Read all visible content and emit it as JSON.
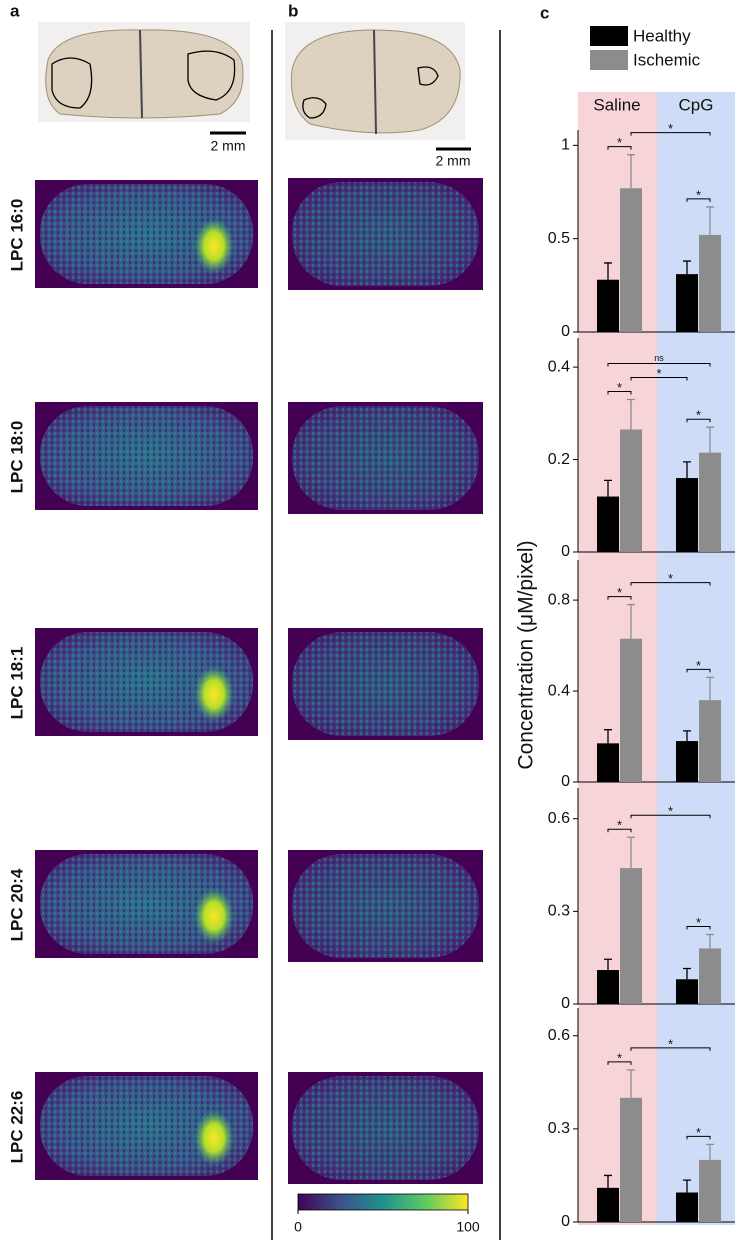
{
  "panel_labels": [
    "a",
    "b",
    "c"
  ],
  "scale_bars": [
    "2 mm",
    "2 mm"
  ],
  "row_labels": [
    "LPC 16:0",
    "LPC 18:0",
    "LPC 18:1",
    "LPC 20:4",
    "LPC 22:6"
  ],
  "colorbar": {
    "lim": [
      0,
      100
    ],
    "ticks": [
      0,
      100
    ]
  },
  "group_labels": [
    "Saline",
    "CpG"
  ],
  "ylabel": "Concentration (μM/pixel)",
  "chart_data": [
    {
      "type": "bar",
      "series": [
        {
          "name": "Healthy",
          "color": "#000000",
          "values": [
            0.28,
            0.31
          ],
          "errors": [
            0.09,
            0.07
          ]
        },
        {
          "name": "Ischemic",
          "color": "#8c8c8c",
          "values": [
            0.77,
            0.52
          ],
          "errors": [
            0.18,
            0.15
          ]
        }
      ],
      "ylim": [
        0,
        1.05
      ],
      "yticks": [
        0,
        0.5,
        1
      ],
      "annotations": [
        "*",
        "*",
        "*"
      ]
    },
    {
      "type": "bar",
      "series": [
        {
          "color": "#000000",
          "values": [
            0.12,
            0.16
          ],
          "errors": [
            0.035,
            0.035
          ]
        },
        {
          "color": "#8c8c8c",
          "values": [
            0.265,
            0.215
          ],
          "errors": [
            0.065,
            0.055
          ]
        }
      ],
      "ylim": [
        0,
        0.45
      ],
      "yticks": [
        0,
        0.2,
        0.4
      ],
      "annotations": [
        "*",
        "*",
        "ns",
        "*"
      ]
    },
    {
      "type": "bar",
      "series": [
        {
          "color": "#000000",
          "values": [
            0.17,
            0.18
          ],
          "errors": [
            0.06,
            0.045
          ]
        },
        {
          "color": "#8c8c8c",
          "values": [
            0.63,
            0.36
          ],
          "errors": [
            0.15,
            0.1
          ]
        }
      ],
      "ylim": [
        0,
        0.95
      ],
      "yticks": [
        0,
        0.4,
        0.8
      ],
      "annotations": [
        "*",
        "*",
        "*"
      ]
    },
    {
      "type": "bar",
      "series": [
        {
          "color": "#000000",
          "values": [
            0.11,
            0.08
          ],
          "errors": [
            0.035,
            0.035
          ]
        },
        {
          "color": "#8c8c8c",
          "values": [
            0.44,
            0.18
          ],
          "errors": [
            0.1,
            0.045
          ]
        }
      ],
      "ylim": [
        0,
        0.68
      ],
      "yticks": [
        0,
        0.3,
        0.6
      ],
      "annotations": [
        "*",
        "*",
        "*"
      ]
    },
    {
      "type": "bar",
      "series": [
        {
          "color": "#000000",
          "values": [
            0.11,
            0.095
          ],
          "errors": [
            0.04,
            0.04
          ]
        },
        {
          "color": "#8c8c8c",
          "values": [
            0.4,
            0.2
          ],
          "errors": [
            0.09,
            0.05
          ]
        }
      ],
      "ylim": [
        0,
        0.67
      ],
      "yticks": [
        0,
        0.3,
        0.6
      ],
      "annotations": [
        "*",
        "*",
        "*"
      ]
    }
  ]
}
